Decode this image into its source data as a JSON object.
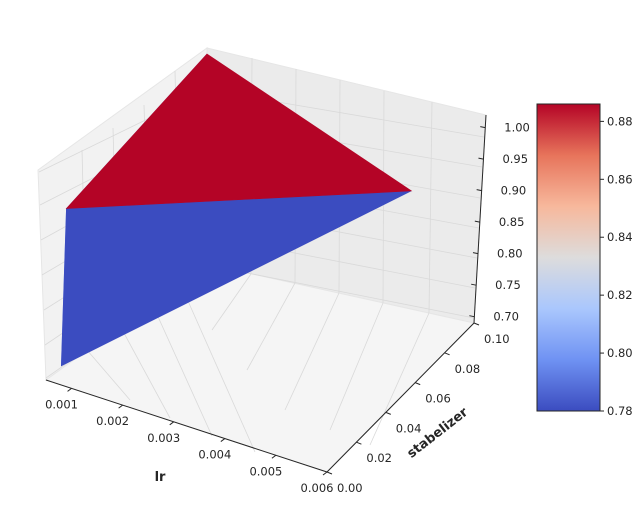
{
  "chart_data": {
    "type": "surface3d",
    "title": "",
    "xlabel": "lr",
    "ylabel": "stabelizer",
    "zlabel": "",
    "x_ticks": [
      "0.001",
      "0.002",
      "0.003",
      "0.004",
      "0.005",
      "0.006"
    ],
    "y_ticks": [
      "0.00",
      "0.02",
      "0.04",
      "0.06",
      "0.08",
      "0.10"
    ],
    "z_ticks": [
      "0.70",
      "0.75",
      "0.80",
      "0.85",
      "0.90",
      "0.95",
      "1.00"
    ],
    "xlim": [
      0.0005,
      0.006
    ],
    "ylim": [
      0.0,
      0.1
    ],
    "zlim": [
      0.69,
      1.02
    ],
    "colorbar": {
      "ticks": [
        "0.78",
        "0.80",
        "0.82",
        "0.84",
        "0.86",
        "0.88"
      ],
      "range": [
        0.78,
        0.886
      ],
      "colormap": "coolwarm",
      "colors": [
        "#3b4cc0",
        "#6f92f3",
        "#aac7fd",
        "#dddcdc",
        "#f7b89c",
        "#e7745b",
        "#b40426"
      ]
    },
    "surface_faces": [
      {
        "name": "top face",
        "vertices": [
          [
            0.0005,
            0.1,
            1.02
          ],
          [
            0.0009,
            0.0,
            0.97
          ],
          [
            0.0045,
            0.1,
            0.91
          ]
        ],
        "value": 0.886,
        "color": "#b40426"
      },
      {
        "name": "left face",
        "vertices": [
          [
            0.0005,
            0.1,
            1.02
          ],
          [
            0.0009,
            0.0,
            0.97
          ],
          [
            0.0008,
            0.0,
            0.72
          ]
        ],
        "value": 0.81,
        "color": "#8aaafc"
      },
      {
        "name": "right face",
        "vertices": [
          [
            0.0009,
            0.0,
            0.97
          ],
          [
            0.0045,
            0.1,
            0.91
          ],
          [
            0.0008,
            0.0,
            0.72
          ]
        ],
        "value": 0.78,
        "color": "#3b4cc0"
      }
    ]
  }
}
